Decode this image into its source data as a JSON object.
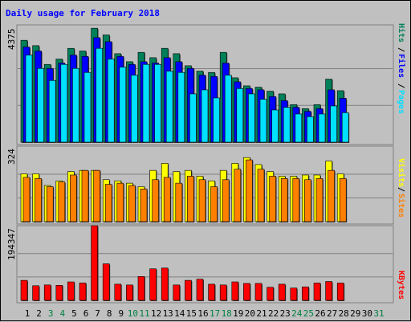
{
  "chart_data": [
    {
      "type": "bar",
      "title": "Daily usage for February 2018",
      "categories": [
        "1",
        "2",
        "3",
        "4",
        "5",
        "6",
        "7",
        "8",
        "9",
        "10",
        "11",
        "12",
        "13",
        "14",
        "15",
        "16",
        "17",
        "18",
        "19",
        "20",
        "21",
        "22",
        "23",
        "24",
        "25",
        "26",
        "27",
        "28",
        "29",
        "30",
        "31"
      ],
      "weekend_days": [
        3,
        4,
        10,
        11,
        17,
        18,
        24,
        25,
        31
      ],
      "ymax_label": "4375",
      "ylim": [
        0,
        4375
      ],
      "series": [
        {
          "name": "Hits",
          "color": "#00805a",
          "values": [
            3800,
            3600,
            2900,
            3100,
            3500,
            3400,
            4250,
            4000,
            3300,
            3000,
            3350,
            3150,
            3500,
            3300,
            2850,
            2650,
            2600,
            3350,
            2400,
            2100,
            2050,
            1900,
            1800,
            1400,
            1250,
            1400,
            2350,
            1920,
            0,
            0,
            0
          ]
        },
        {
          "name": "Files",
          "color": "#0000ff",
          "values": [
            3550,
            3400,
            2750,
            2950,
            3250,
            3200,
            3900,
            3750,
            3200,
            2900,
            3000,
            2950,
            3150,
            3000,
            2750,
            2500,
            2450,
            2950,
            2250,
            2000,
            1950,
            1700,
            1550,
            1300,
            1150,
            1250,
            1950,
            1640,
            0,
            0,
            0
          ]
        },
        {
          "name": "Pages",
          "color": "#00e0ff",
          "values": [
            3250,
            2750,
            2300,
            2900,
            2750,
            2600,
            3500,
            3100,
            2800,
            2500,
            2900,
            2900,
            2650,
            2600,
            1800,
            1950,
            1650,
            2500,
            2000,
            1800,
            1600,
            1200,
            1300,
            1050,
            950,
            1050,
            1350,
            1100,
            0,
            0,
            0
          ]
        }
      ],
      "axis_legend": [
        "Pages",
        "Files",
        "Hits"
      ]
    },
    {
      "type": "bar",
      "ymax_label": "324",
      "ylim": [
        0,
        324
      ],
      "series": [
        {
          "name": "Visits",
          "color": "#ffff00",
          "values": [
            205,
            205,
            155,
            175,
            215,
            220,
            220,
            180,
            175,
            165,
            150,
            220,
            250,
            215,
            220,
            195,
            175,
            220,
            250,
            275,
            245,
            215,
            195,
            195,
            200,
            200,
            260,
            205,
            0,
            0,
            0
          ]
        },
        {
          "name": "Sites",
          "color": "#ff8000",
          "values": [
            190,
            185,
            150,
            170,
            200,
            220,
            220,
            160,
            165,
            155,
            140,
            180,
            190,
            165,
            195,
            180,
            150,
            180,
            225,
            265,
            225,
            195,
            185,
            185,
            180,
            185,
            220,
            185,
            0,
            0,
            0
          ]
        }
      ],
      "axis_legend": [
        "Sites",
        "Visits"
      ]
    },
    {
      "type": "bar",
      "ymax_label": "194347",
      "ylim": [
        0,
        194347
      ],
      "series": [
        {
          "name": "KBytes",
          "color": "#ff0000",
          "values": [
            52000,
            38000,
            40000,
            39000,
            48000,
            45000,
            194347,
            95000,
            42000,
            40000,
            62000,
            82000,
            84000,
            40000,
            52000,
            55000,
            42000,
            40000,
            48000,
            44000,
            44000,
            34000,
            42000,
            32000,
            35000,
            45000,
            49000,
            45000,
            0,
            0,
            0
          ]
        }
      ],
      "axis_legend": [
        "KBytes"
      ]
    }
  ]
}
